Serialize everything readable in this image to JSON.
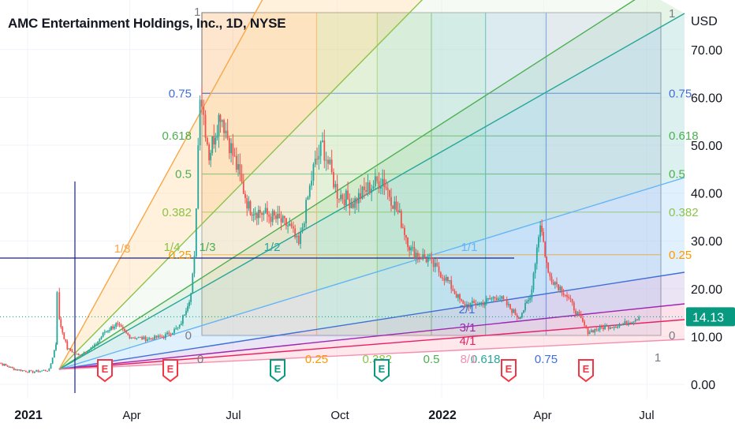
{
  "header": {
    "title": "AMC Entertainment Holdings, Inc., 1D, NYSE"
  },
  "price_axis": {
    "currency": "USD",
    "ticks": [
      "70.00",
      "60.00",
      "50.00",
      "40.00",
      "30.00",
      "20.00",
      "10.00",
      "0.00"
    ]
  },
  "time_axis": {
    "ticks": [
      "2021",
      "Apr",
      "Jul",
      "Oct",
      "2022",
      "Apr",
      "Jul"
    ]
  },
  "last_price": {
    "value": "14.13",
    "color": "#089981"
  },
  "fib_box": {
    "top_label": "1",
    "right_top_label": "1",
    "retracement_levels": [
      "0.75",
      "0.618",
      "0.5",
      "0.382",
      "0.25",
      "0"
    ],
    "right_levels": [
      "0.75",
      "0.618",
      "0.5",
      "0.382",
      "0.25",
      "0"
    ],
    "time_levels": [
      "0",
      "0.25",
      "0.382",
      "0.5",
      "0.618",
      "0.75",
      "1"
    ]
  },
  "gann_fan": {
    "labels": [
      "1/8",
      "1/4",
      "1/3",
      "1/2",
      "1/1",
      "2/1",
      "3/1",
      "4/1",
      "8/1"
    ]
  },
  "earnings_markers": [
    {
      "label": "E",
      "kind": "red"
    },
    {
      "label": "E",
      "kind": "red"
    },
    {
      "label": "E",
      "kind": "green"
    },
    {
      "label": "E",
      "kind": "green"
    },
    {
      "label": "E",
      "kind": "red"
    },
    {
      "label": "E",
      "kind": "red"
    }
  ],
  "colors": {
    "up": "#26a69a",
    "down": "#ef5350",
    "price_line": "#089981",
    "crosshair": "#1a237e"
  },
  "chart_data": {
    "type": "candlestick",
    "title": "AMC Entertainment Holdings, Inc., 1D, NYSE",
    "ylabel": "USD",
    "ylim": [
      0,
      75
    ],
    "last_close": 14.13,
    "series": [
      {
        "name": "AMC",
        "points": [
          [
            "2020-12-01",
            5.0
          ],
          [
            "2020-12-10",
            4.2
          ],
          [
            "2020-12-20",
            3.2
          ],
          [
            "2021-01-04",
            2.6
          ],
          [
            "2021-01-20",
            3.0
          ],
          [
            "2021-01-26",
            8.5
          ],
          [
            "2021-01-27",
            19.9
          ],
          [
            "2021-01-29",
            13.3
          ],
          [
            "2021-02-05",
            7.5
          ],
          [
            "2021-02-15",
            6.0
          ],
          [
            "2021-03-01",
            8.0
          ],
          [
            "2021-03-10",
            11.0
          ],
          [
            "2021-03-20",
            12.5
          ],
          [
            "2021-04-01",
            10.0
          ],
          [
            "2021-04-15",
            9.5
          ],
          [
            "2021-05-01",
            10.0
          ],
          [
            "2021-05-15",
            12.0
          ],
          [
            "2021-05-25",
            19.0
          ],
          [
            "2021-05-28",
            26.0
          ],
          [
            "2021-06-02",
            62.0
          ],
          [
            "2021-06-10",
            48.0
          ],
          [
            "2021-06-20",
            57.0
          ],
          [
            "2021-07-01",
            48.0
          ],
          [
            "2021-07-15",
            37.0
          ],
          [
            "2021-07-25",
            36.0
          ],
          [
            "2021-08-05",
            35.0
          ],
          [
            "2021-08-20",
            33.0
          ],
          [
            "2021-08-28",
            29.0
          ],
          [
            "2021-09-10",
            45.0
          ],
          [
            "2021-09-18",
            50.0
          ],
          [
            "2021-10-01",
            40.0
          ],
          [
            "2021-10-15",
            38.0
          ],
          [
            "2021-10-28",
            41.0
          ],
          [
            "2021-11-10",
            43.0
          ],
          [
            "2021-11-25",
            35.0
          ],
          [
            "2021-12-05",
            28.0
          ],
          [
            "2021-12-20",
            26.0
          ],
          [
            "2022-01-05",
            22.0
          ],
          [
            "2022-01-20",
            16.5
          ],
          [
            "2022-02-05",
            17.0
          ],
          [
            "2022-02-20",
            18.5
          ],
          [
            "2022-03-10",
            14.0
          ],
          [
            "2022-03-20",
            18.0
          ],
          [
            "2022-03-29",
            34.0
          ],
          [
            "2022-04-05",
            23.0
          ],
          [
            "2022-04-20",
            19.0
          ],
          [
            "2022-05-10",
            11.0
          ],
          [
            "2022-05-25",
            12.0
          ],
          [
            "2022-06-10",
            12.5
          ],
          [
            "2022-06-24",
            14.13
          ]
        ]
      }
    ]
  }
}
